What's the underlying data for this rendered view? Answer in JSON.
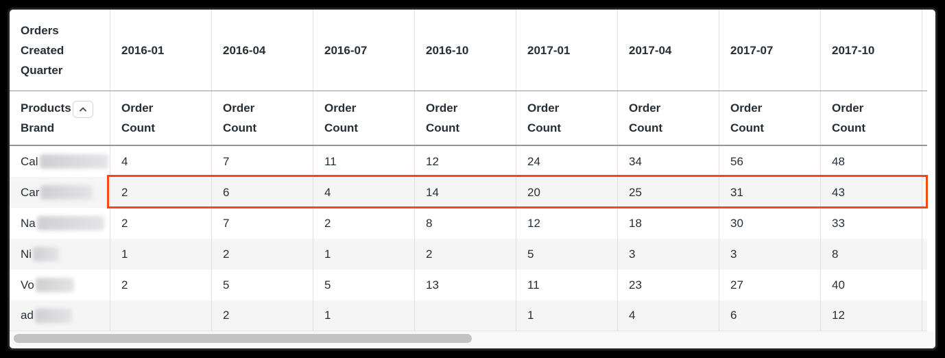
{
  "table": {
    "corner_header": "Orders Created Quarter",
    "row_dimension_header": "Products Brand",
    "measure_label": "Order Count",
    "quarters": [
      "2016-01",
      "2016-04",
      "2016-07",
      "2016-10",
      "2017-01",
      "2017-04",
      "2017-07",
      "2017-10"
    ],
    "rows": [
      {
        "brand_prefix": "Cal",
        "values": [
          "4",
          "7",
          "11",
          "12",
          "24",
          "34",
          "56",
          "48"
        ],
        "highlighted": false
      },
      {
        "brand_prefix": "Car",
        "values": [
          "2",
          "6",
          "4",
          "14",
          "20",
          "25",
          "31",
          "43"
        ],
        "highlighted": true
      },
      {
        "brand_prefix": "Na",
        "values": [
          "2",
          "7",
          "2",
          "8",
          "12",
          "18",
          "30",
          "33"
        ],
        "highlighted": false
      },
      {
        "brand_prefix": "Ni",
        "values": [
          "1",
          "2",
          "1",
          "2",
          "5",
          "3",
          "3",
          "8"
        ],
        "highlighted": false
      },
      {
        "brand_prefix": "Vo",
        "values": [
          "2",
          "5",
          "5",
          "13",
          "11",
          "23",
          "27",
          "40"
        ],
        "highlighted": false
      },
      {
        "brand_prefix": "ad",
        "values": [
          "",
          "2",
          "1",
          "",
          "1",
          "4",
          "6",
          "12"
        ],
        "highlighted": false
      }
    ]
  },
  "icons": {
    "sort": "chevron-up-icon"
  },
  "colors": {
    "highlight_border": "#f24a17",
    "header_text": "#262e36",
    "row_stripe": "#f5f5f6",
    "scrollbar_thumb": "#c2c2c4"
  }
}
